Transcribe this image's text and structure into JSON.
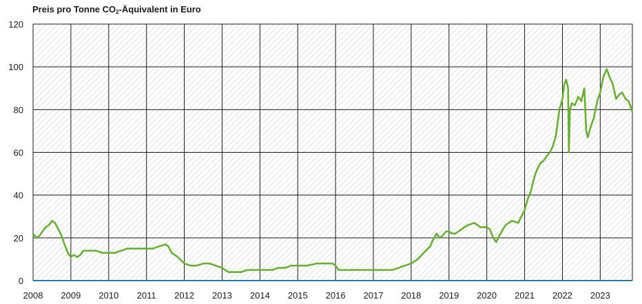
{
  "chart_data": {
    "type": "line",
    "title_parts": [
      "Preis pro Tonne CO",
      "2",
      "-Äquivalent in Euro"
    ],
    "xlabel": "",
    "ylabel": "",
    "x_ticks": [
      "2008",
      "2009",
      "2010",
      "2011",
      "2012",
      "2013",
      "2014",
      "2015",
      "2016",
      "2017",
      "2018",
      "2019",
      "2020",
      "2021",
      "2022",
      "2023"
    ],
    "x_range": [
      2008.0,
      2023.85
    ],
    "y_ticks": [
      0,
      20,
      40,
      60,
      80,
      100,
      120
    ],
    "ylim": [
      0,
      120
    ],
    "grid": true,
    "legend": "none",
    "colors": {
      "line": "#66b032",
      "axis": "#1f7fa0",
      "grid": "#1a1a1a",
      "hatch": "#d4d4d4"
    },
    "series": [
      {
        "x": [
          2008.0,
          2008.08,
          2008.17,
          2008.25,
          2008.33,
          2008.42,
          2008.5,
          2008.58,
          2008.67,
          2008.75,
          2008.83,
          2008.92,
          2009.0,
          2009.08,
          2009.17,
          2009.25,
          2009.33,
          2009.5,
          2009.67,
          2009.83,
          2010.0,
          2010.17,
          2010.33,
          2010.5,
          2010.67,
          2010.83,
          2011.0,
          2011.17,
          2011.33,
          2011.5,
          2011.58,
          2011.67,
          2011.75,
          2011.83,
          2012.0,
          2012.17,
          2012.33,
          2012.5,
          2012.67,
          2012.83,
          2013.0,
          2013.08,
          2013.17,
          2013.25,
          2013.33,
          2013.5,
          2013.67,
          2013.83,
          2014.0,
          2014.17,
          2014.33,
          2014.5,
          2014.67,
          2014.83,
          2015.0,
          2015.25,
          2015.5,
          2015.75,
          2015.92,
          2016.0,
          2016.08,
          2016.17,
          2016.33,
          2016.5,
          2016.67,
          2016.83,
          2017.0,
          2017.17,
          2017.33,
          2017.5,
          2017.67,
          2017.83,
          2018.0,
          2018.17,
          2018.33,
          2018.5,
          2018.58,
          2018.67,
          2018.75,
          2018.83,
          2018.92,
          2019.0,
          2019.08,
          2019.17,
          2019.33,
          2019.5,
          2019.67,
          2019.83,
          2020.0,
          2020.08,
          2020.17,
          2020.25,
          2020.33,
          2020.5,
          2020.67,
          2020.83,
          2021.0,
          2021.08,
          2021.17,
          2021.25,
          2021.33,
          2021.42,
          2021.5,
          2021.58,
          2021.67,
          2021.75,
          2021.83,
          2021.92,
          2022.0,
          2022.05,
          2022.1,
          2022.15,
          2022.17,
          2022.2,
          2022.25,
          2022.33,
          2022.42,
          2022.5,
          2022.58,
          2022.63,
          2022.67,
          2022.75,
          2022.83,
          2022.92,
          2023.0,
          2023.08,
          2023.17,
          2023.25,
          2023.33,
          2023.42,
          2023.5,
          2023.58,
          2023.67,
          2023.75,
          2023.85
        ],
        "values": [
          22,
          20,
          21,
          23,
          25,
          26,
          28,
          27,
          24,
          21,
          17,
          13,
          11,
          12,
          11,
          12,
          14,
          14,
          14,
          13,
          13,
          13,
          14,
          15,
          15,
          15,
          15,
          15,
          16,
          17,
          16,
          13,
          12,
          11,
          8,
          7,
          7,
          8,
          8,
          7,
          6,
          5,
          4,
          4,
          4,
          4,
          5,
          5,
          5,
          5,
          5,
          6,
          6,
          7,
          7,
          7,
          8,
          8,
          8,
          7,
          5,
          5,
          5,
          5,
          5,
          5,
          5,
          5,
          5,
          5,
          6,
          7,
          8,
          10,
          13,
          16,
          19,
          22,
          20,
          21,
          23,
          23,
          22,
          22,
          24,
          26,
          27,
          25,
          25,
          24,
          20,
          18,
          21,
          26,
          28,
          27,
          33,
          38,
          42,
          48,
          52,
          55,
          56,
          58,
          60,
          63,
          68,
          80,
          85,
          92,
          94,
          90,
          60,
          80,
          83,
          82,
          86,
          84,
          90,
          70,
          67,
          72,
          76,
          84,
          88,
          95,
          99,
          95,
          92,
          85,
          87,
          88,
          85,
          84,
          79
        ]
      }
    ]
  }
}
